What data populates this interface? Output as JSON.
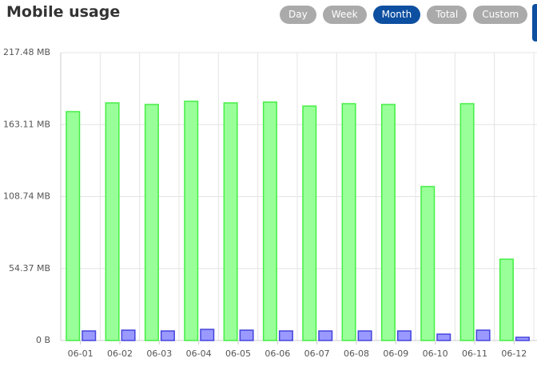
{
  "header": {
    "title": "Mobile usage",
    "buttons": [
      "Day",
      "Week",
      "Month",
      "Total",
      "Custom"
    ],
    "active": "Month"
  },
  "chart_data": {
    "type": "bar",
    "categories": [
      "06-01",
      "06-02",
      "06-03",
      "06-04",
      "06-05",
      "06-06",
      "06-07",
      "06-08",
      "06-09",
      "06-10",
      "06-11",
      "06-12"
    ],
    "series": [
      {
        "color": "#99ff99",
        "border_color": "#44ee44",
        "values": [
          172.9,
          179.5,
          178.3,
          180.7,
          179.5,
          180.1,
          177.1,
          178.9,
          178.3,
          116.3,
          178.9,
          61.4
        ]
      },
      {
        "color": "#9999ff",
        "border_color": "#4444dd",
        "values": [
          7.2,
          7.8,
          7.2,
          8.4,
          7.8,
          7.2,
          7.2,
          7.2,
          7.2,
          4.8,
          7.8,
          2.4
        ]
      }
    ],
    "ylim": [
      0,
      217.48
    ],
    "yticks": [
      {
        "value": 0,
        "label": "0 B"
      },
      {
        "value": 54.37,
        "label": "54.37 MB"
      },
      {
        "value": 108.74,
        "label": "108.74 MB"
      },
      {
        "value": 163.11,
        "label": "163.11 MB"
      },
      {
        "value": 217.48,
        "label": "217.48 MB"
      }
    ],
    "grid": true
  }
}
